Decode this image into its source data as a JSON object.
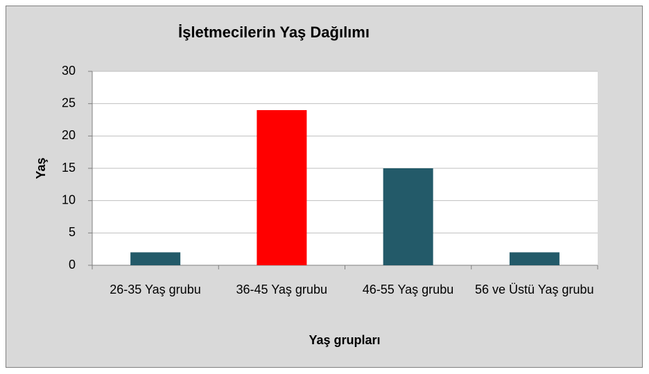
{
  "chart_data": {
    "type": "bar",
    "title": "İşletmecilerin Yaş Dağılımı",
    "x_label": "Yaş grupları",
    "y_label": "Yaş",
    "categories": [
      "26-35 Yaş grubu",
      "36-45 Yaş grubu",
      "46-55 Yaş grubu",
      "56 ve Üstü Yaş grubu"
    ],
    "values": [
      2,
      24,
      15,
      2
    ],
    "colors": [
      "#235a69",
      "#ff0000",
      "#235a69",
      "#235a69"
    ],
    "ylim": [
      0,
      30
    ],
    "yticks": [
      0,
      5,
      10,
      15,
      20,
      25,
      30
    ],
    "grid": true
  }
}
